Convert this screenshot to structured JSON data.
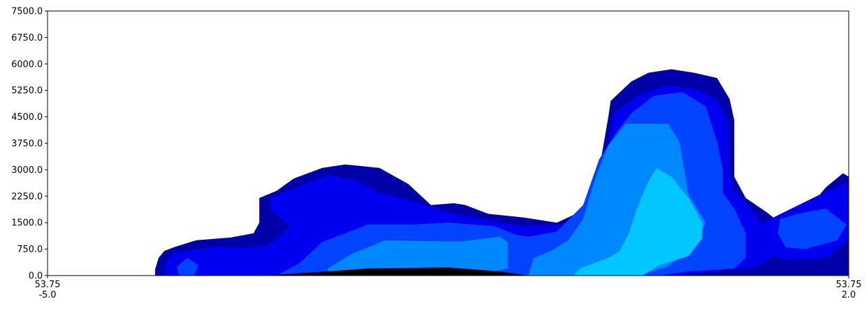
{
  "chart_data": {
    "type": "filled-contour",
    "title": "",
    "xlabel": "",
    "ylabel": "",
    "ylim": [
      0,
      7500
    ],
    "xlim": [
      -5.0,
      2.0
    ],
    "y_ticks": [
      "0.0",
      "750.0",
      "1500.0",
      "2250.0",
      "3000.0",
      "3750.0",
      "4500.0",
      "5250.0",
      "6000.0",
      "6750.0",
      "7500.0"
    ],
    "x_ticks": [
      {
        "lat": "53.75",
        "lon": "-5.0"
      },
      {
        "lat": "53.75",
        "lon": "2.0"
      }
    ],
    "grid": false,
    "legend": "none",
    "level_colors": [
      "#0000a8",
      "#0000f0",
      "#0044ff",
      "#0088ff",
      "#00c8ff"
    ],
    "terrain_color": "#000000",
    "layers": [
      {
        "color": "#0000a8",
        "polygons": [
          [
            [
              -4.06,
              0
            ],
            [
              -4.06,
              180
            ],
            [
              -4.03,
              500
            ],
            [
              -3.98,
              700
            ],
            [
              -3.88,
              820
            ],
            [
              -3.7,
              1000
            ],
            [
              -3.4,
              1080
            ],
            [
              -3.2,
              1200
            ],
            [
              -3.15,
              1500
            ],
            [
              -3.15,
              2200
            ],
            [
              -3.0,
              2400
            ],
            [
              -2.85,
              2750
            ],
            [
              -2.6,
              3050
            ],
            [
              -2.4,
              3150
            ],
            [
              -2.1,
              3050
            ],
            [
              -1.85,
              2600
            ],
            [
              -1.65,
              2000
            ],
            [
              -1.45,
              2050
            ],
            [
              -1.35,
              2000
            ],
            [
              -1.15,
              1750
            ],
            [
              -0.85,
              1650
            ],
            [
              -0.55,
              1500
            ],
            [
              -0.35,
              1800
            ],
            [
              -0.18,
              2300
            ],
            [
              -0.17,
              3200
            ],
            [
              -0.1,
              4500
            ],
            [
              -0.08,
              4950
            ],
            [
              0.1,
              5500
            ],
            [
              0.25,
              5750
            ],
            [
              0.45,
              5850
            ],
            [
              0.65,
              5750
            ],
            [
              0.85,
              5600
            ],
            [
              0.96,
              5000
            ],
            [
              1.0,
              4400
            ],
            [
              1.0,
              2800
            ],
            [
              1.1,
              2200
            ],
            [
              1.28,
              1800
            ],
            [
              1.4,
              1500
            ],
            [
              1.62,
              1800
            ],
            [
              1.8,
              2500
            ],
            [
              1.95,
              2900
            ],
            [
              2.0,
              2800
            ],
            [
              2.0,
              0
            ]
          ],
          [
            [
              0.6,
              0
            ],
            [
              0.9,
              100
            ],
            [
              1.4,
              270
            ],
            [
              1.6,
              320
            ],
            [
              2.0,
              150
            ],
            [
              2.0,
              0
            ]
          ]
        ]
      },
      {
        "color": "#0000f0",
        "polygons": [
          [
            [
              -3.97,
              0
            ],
            [
              -3.97,
              400
            ],
            [
              -3.9,
              650
            ],
            [
              -3.7,
              750
            ],
            [
              -3.5,
              820
            ],
            [
              -3.25,
              780
            ],
            [
              -3.05,
              900
            ],
            [
              -2.88,
              1400
            ],
            [
              -3.05,
              1850
            ],
            [
              -3.05,
              2200
            ],
            [
              -2.8,
              2550
            ],
            [
              -2.55,
              2850
            ],
            [
              -2.3,
              2700
            ],
            [
              -2.1,
              2350
            ],
            [
              -1.8,
              2100
            ],
            [
              -1.45,
              1750
            ],
            [
              -0.85,
              1400
            ],
            [
              -0.4,
              1450
            ],
            [
              -0.2,
              1900
            ],
            [
              -0.15,
              2700
            ],
            [
              -0.1,
              3700
            ],
            [
              -0.05,
              4600
            ],
            [
              0.15,
              5100
            ],
            [
              0.4,
              5400
            ],
            [
              0.65,
              5300
            ],
            [
              0.85,
              5000
            ],
            [
              0.95,
              4300
            ],
            [
              0.95,
              3100
            ],
            [
              1.0,
              2400
            ],
            [
              1.12,
              2000
            ],
            [
              1.22,
              1600
            ],
            [
              1.32,
              1000
            ],
            [
              1.32,
              500
            ],
            [
              1.2,
              250
            ],
            [
              0.8,
              120
            ],
            [
              0.5,
              0
            ]
          ],
          [
            [
              1.2,
              1100
            ],
            [
              1.25,
              1500
            ],
            [
              1.5,
              1900
            ],
            [
              1.75,
              2300
            ],
            [
              2.0,
              2650
            ],
            [
              2.0,
              1000
            ],
            [
              1.8,
              500
            ],
            [
              1.45,
              450
            ],
            [
              1.2,
              700
            ]
          ]
        ]
      },
      {
        "color": "#0044ff",
        "polygons": [
          [
            [
              -3.85,
              0
            ],
            [
              -3.87,
              250
            ],
            [
              -3.78,
              500
            ],
            [
              -3.68,
              300
            ],
            [
              -3.72,
              0
            ]
          ],
          [
            [
              -3.0,
              0
            ],
            [
              -2.8,
              350
            ],
            [
              -2.6,
              950
            ],
            [
              -2.2,
              1450
            ],
            [
              -1.8,
              1450
            ],
            [
              -1.5,
              1500
            ],
            [
              -1.1,
              1400
            ],
            [
              -0.9,
              1150
            ],
            [
              -0.8,
              1100
            ],
            [
              -0.55,
              1250
            ],
            [
              -0.32,
              2000
            ],
            [
              -0.18,
              3300
            ],
            [
              -0.02,
              4100
            ],
            [
              0.1,
              4600
            ],
            [
              0.3,
              5100
            ],
            [
              0.55,
              5200
            ],
            [
              0.75,
              4800
            ],
            [
              0.85,
              3800
            ],
            [
              0.9,
              3000
            ],
            [
              0.9,
              2350
            ],
            [
              1.0,
              1900
            ],
            [
              1.1,
              1200
            ],
            [
              1.1,
              500
            ],
            [
              1.0,
              200
            ],
            [
              0.6,
              120
            ],
            [
              0.35,
              0
            ]
          ],
          [
            [
              1.38,
              1200
            ],
            [
              1.4,
              1600
            ],
            [
              1.55,
              1750
            ],
            [
              1.8,
              1900
            ],
            [
              1.98,
              1450
            ],
            [
              1.9,
              1000
            ],
            [
              1.62,
              750
            ],
            [
              1.45,
              800
            ]
          ]
        ]
      },
      {
        "color": "#0088ff",
        "polygons": [
          [
            [
              -2.55,
              0
            ],
            [
              -2.55,
              200
            ],
            [
              -2.35,
              600
            ],
            [
              -2.05,
              1000
            ],
            [
              -1.4,
              960
            ],
            [
              -1.05,
              1100
            ],
            [
              -0.98,
              950
            ],
            [
              -0.98,
              200
            ],
            [
              -1.3,
              0
            ]
          ],
          [
            [
              -0.8,
              0
            ],
            [
              -0.75,
              500
            ],
            [
              -0.6,
              700
            ],
            [
              -0.45,
              1000
            ],
            [
              -0.32,
              1600
            ],
            [
              -0.22,
              2700
            ],
            [
              -0.1,
              3700
            ],
            [
              0.05,
              4300
            ],
            [
              0.42,
              4300
            ],
            [
              0.52,
              3800
            ],
            [
              0.6,
              2300
            ],
            [
              0.75,
              1500
            ],
            [
              0.65,
              800
            ],
            [
              0.4,
              230
            ],
            [
              0.1,
              0
            ]
          ]
        ]
      },
      {
        "color": "#00c8ff",
        "polygons": [
          [
            [
              -0.4,
              0
            ],
            [
              -0.35,
              200
            ],
            [
              -0.1,
              500
            ],
            [
              0.0,
              700
            ],
            [
              0.08,
              1200
            ],
            [
              0.15,
              1900
            ],
            [
              0.24,
              2600
            ],
            [
              0.32,
              3050
            ],
            [
              0.45,
              2800
            ],
            [
              0.6,
              2200
            ],
            [
              0.72,
              1500
            ],
            [
              0.72,
              1050
            ],
            [
              0.6,
              550
            ],
            [
              0.35,
              300
            ],
            [
              0.2,
              0
            ]
          ]
        ]
      }
    ],
    "terrain": [
      [
        -3.1,
        0
      ],
      [
        -2.2,
        200
      ],
      [
        -1.5,
        230
      ],
      [
        -1.05,
        120
      ],
      [
        -0.8,
        0
      ]
    ]
  }
}
